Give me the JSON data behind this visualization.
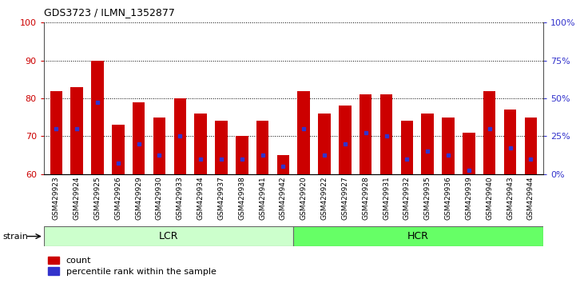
{
  "title": "GDS3723 / ILMN_1352877",
  "samples": [
    "GSM429923",
    "GSM429924",
    "GSM429925",
    "GSM429926",
    "GSM429929",
    "GSM429930",
    "GSM429933",
    "GSM429934",
    "GSM429937",
    "GSM429938",
    "GSM429941",
    "GSM429942",
    "GSM429920",
    "GSM429922",
    "GSM429927",
    "GSM429928",
    "GSM429931",
    "GSM429932",
    "GSM429935",
    "GSM429936",
    "GSM429939",
    "GSM429940",
    "GSM429943",
    "GSM429944"
  ],
  "count_values": [
    82,
    83,
    90,
    73,
    79,
    75,
    80,
    76,
    74,
    70,
    74,
    65,
    82,
    76,
    78,
    81,
    81,
    74,
    76,
    75,
    71,
    82,
    77,
    75
  ],
  "percentile_values": [
    72,
    72,
    79,
    63,
    68,
    65,
    70,
    64,
    64,
    64,
    65,
    62,
    72,
    65,
    68,
    71,
    70,
    64,
    66,
    65,
    61,
    72,
    67,
    64
  ],
  "lcr_count": 12,
  "hcr_count": 12,
  "ylim_left": [
    60,
    100
  ],
  "yticks_left": [
    60,
    70,
    80,
    90,
    100
  ],
  "yticks_right": [
    0,
    25,
    50,
    75,
    100
  ],
  "ytick_labels_right": [
    "0%",
    "25%",
    "50%",
    "75%",
    "100%"
  ],
  "bar_color": "#cc0000",
  "dot_color": "#3333cc",
  "lcr_color": "#ccffcc",
  "hcr_color": "#66ff66",
  "grid_color": "black",
  "background_color": "#ffffff",
  "ylabel_left_color": "#cc0000",
  "ylabel_right_color": "#3333cc",
  "lcr_label": "LCR",
  "hcr_label": "HCR",
  "strain_label": "strain",
  "legend_count": "count",
  "legend_percentile": "percentile rank within the sample",
  "bar_width": 0.6
}
